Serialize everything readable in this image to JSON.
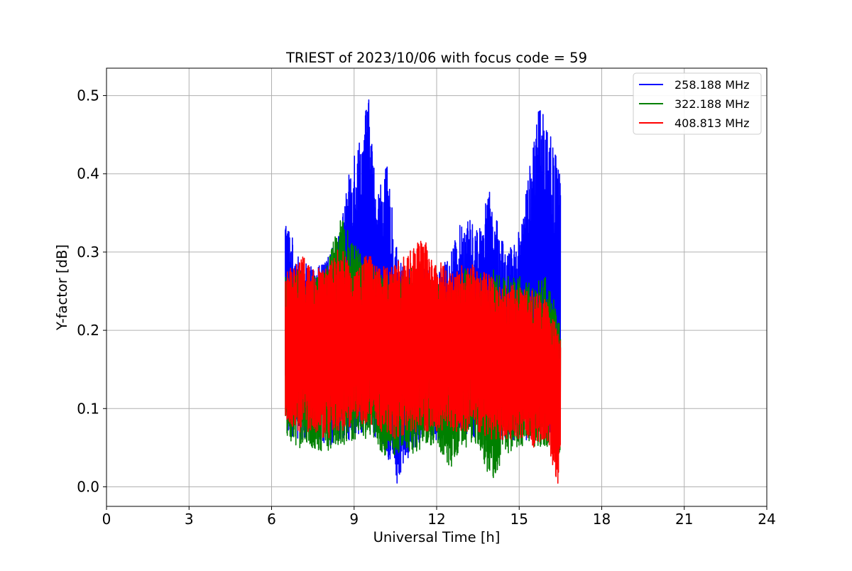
{
  "chart_data": {
    "type": "line",
    "title": "TRIEST of 2023/10/06 with focus code = 59",
    "xlabel": "Universal Time [h]",
    "ylabel": "Y-factor [dB]",
    "xlim": [
      0,
      24
    ],
    "ylim": [
      -0.025,
      0.535
    ],
    "xticks": [
      0,
      3,
      6,
      9,
      12,
      15,
      18,
      21,
      24
    ],
    "xtick_labels": [
      "0",
      "3",
      "6",
      "9",
      "12",
      "15",
      "18",
      "21",
      "24"
    ],
    "yticks": [
      0.0,
      0.1,
      0.2,
      0.3,
      0.4,
      0.5
    ],
    "ytick_labels": [
      "0.0",
      "0.1",
      "0.2",
      "0.3",
      "0.4",
      "0.5"
    ],
    "grid": true,
    "legend_position": "top-right",
    "x_range_of_data": [
      6.5,
      16.5
    ],
    "series": [
      {
        "name": "258.188 MHz",
        "color": "#0000ff",
        "envelope": {
          "x": [
            6.5,
            7.0,
            7.5,
            8.0,
            8.5,
            9.0,
            9.3,
            9.5,
            9.8,
            10.2,
            10.6,
            11.0,
            11.5,
            12.0,
            12.5,
            13.0,
            13.5,
            13.9,
            14.2,
            14.6,
            15.0,
            15.4,
            15.8,
            16.0,
            16.2,
            16.5
          ],
          "low": [
            0.07,
            0.06,
            0.06,
            0.05,
            0.06,
            0.06,
            0.07,
            0.07,
            0.06,
            0.04,
            0.0,
            0.04,
            0.06,
            0.06,
            0.06,
            0.06,
            0.06,
            0.06,
            0.06,
            0.06,
            0.06,
            0.06,
            0.06,
            0.06,
            0.06,
            0.05
          ],
          "high": [
            0.35,
            0.29,
            0.28,
            0.29,
            0.33,
            0.44,
            0.45,
            0.51,
            0.38,
            0.41,
            0.29,
            0.28,
            0.28,
            0.27,
            0.3,
            0.35,
            0.33,
            0.38,
            0.34,
            0.3,
            0.33,
            0.42,
            0.5,
            0.48,
            0.44,
            0.41
          ]
        }
      },
      {
        "name": "322.188 MHz",
        "color": "#008000",
        "envelope": {
          "x": [
            6.5,
            7.0,
            7.5,
            8.0,
            8.5,
            9.0,
            9.5,
            10.0,
            10.5,
            11.0,
            11.5,
            12.0,
            12.5,
            13.0,
            13.5,
            13.9,
            14.5,
            15.0,
            15.5,
            16.0,
            16.5
          ],
          "low": [
            0.06,
            0.05,
            0.05,
            0.04,
            0.05,
            0.06,
            0.06,
            0.04,
            0.04,
            0.04,
            0.05,
            0.05,
            0.02,
            0.05,
            0.05,
            0.0,
            0.04,
            0.05,
            0.05,
            0.05,
            0.04
          ],
          "high": [
            0.27,
            0.28,
            0.27,
            0.28,
            0.35,
            0.31,
            0.29,
            0.27,
            0.27,
            0.28,
            0.28,
            0.26,
            0.26,
            0.28,
            0.27,
            0.28,
            0.27,
            0.27,
            0.26,
            0.27,
            0.21
          ]
        }
      },
      {
        "name": "408.813 MHz",
        "color": "#ff0000",
        "envelope": {
          "x": [
            6.5,
            7.0,
            7.5,
            8.0,
            8.5,
            9.0,
            9.5,
            10.0,
            10.5,
            11.0,
            11.5,
            12.0,
            12.5,
            13.0,
            13.5,
            14.0,
            14.5,
            15.0,
            15.5,
            16.0,
            16.4,
            16.5
          ],
          "low": [
            0.08,
            0.07,
            0.07,
            0.06,
            0.07,
            0.08,
            0.08,
            0.07,
            0.06,
            0.07,
            0.07,
            0.07,
            0.07,
            0.07,
            0.07,
            0.06,
            0.06,
            0.06,
            0.05,
            0.06,
            0.0,
            0.05
          ],
          "high": [
            0.27,
            0.3,
            0.28,
            0.28,
            0.31,
            0.27,
            0.3,
            0.28,
            0.29,
            0.3,
            0.32,
            0.29,
            0.28,
            0.29,
            0.28,
            0.27,
            0.26,
            0.26,
            0.25,
            0.24,
            0.2,
            0.2
          ]
        }
      }
    ]
  }
}
